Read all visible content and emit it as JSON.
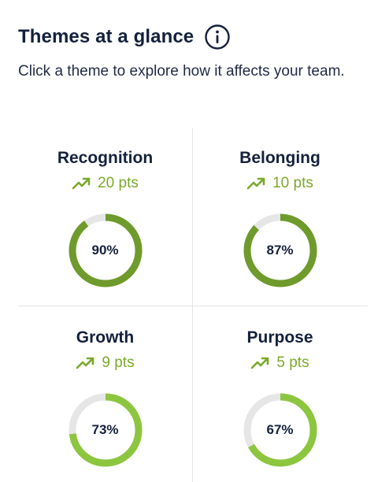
{
  "header": {
    "title": "Themes at a glance",
    "info_icon": "info-circle-icon",
    "subtitle": "Click a theme to explore how it affects your team."
  },
  "themes": [
    {
      "name": "Recognition",
      "change": "20 pts",
      "percent_label": "90%",
      "percent": 90,
      "ring_color": "#6f9a2c"
    },
    {
      "name": "Belonging",
      "change": "10 pts",
      "percent_label": "87%",
      "percent": 87,
      "ring_color": "#6f9a2c"
    },
    {
      "name": "Growth",
      "change": "9 pts",
      "percent_label": "73%",
      "percent": 73,
      "ring_color": "#8cc63f"
    },
    {
      "name": "Purpose",
      "change": "5 pts",
      "percent_label": "67%",
      "percent": 67,
      "ring_color": "#8cc63f"
    }
  ],
  "colors": {
    "trend_green": "#7aa92a",
    "ring_track": "#e6e6e6",
    "text_dark": "#14213d"
  },
  "icons": {
    "trend": "trending-up-icon"
  }
}
